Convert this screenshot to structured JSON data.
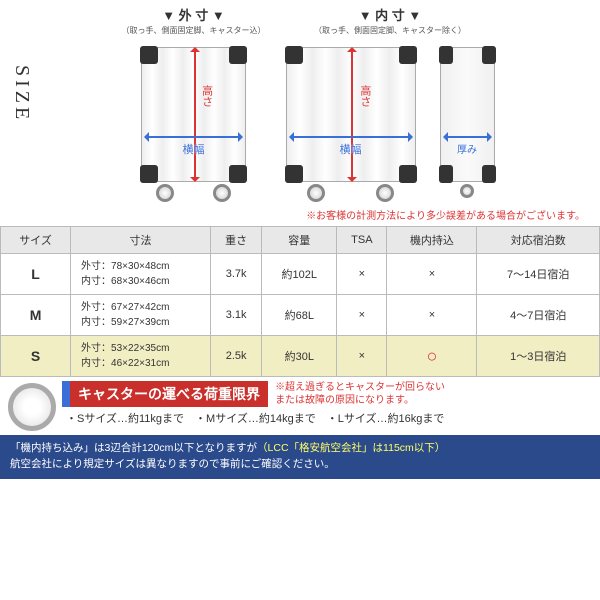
{
  "sizeLabel": "SIZE",
  "diag": {
    "outer": {
      "title": "▼ 外 寸 ▼",
      "sub": "（取っ手、側面固定脚、キャスター込）"
    },
    "inner": {
      "title": "▼ 内 寸 ▼",
      "sub": "（取っ手、側面固定脚、キャスター除く）"
    },
    "height": "高さ",
    "width": "横幅",
    "depth": "厚み"
  },
  "note": "※お客様の計測方法により多少誤差がある場合がございます。",
  "headers": [
    "サイズ",
    "寸法",
    "重さ",
    "容量",
    "TSA",
    "機内持込",
    "対応宿泊数"
  ],
  "rows": [
    {
      "size": "L",
      "outer": "外寸：78×30×48cm",
      "inner": "内寸：68×30×46cm",
      "weight": "3.7k",
      "cap": "約102L",
      "tsa": "×",
      "carry": "×",
      "nights": "7〜14日宿泊"
    },
    {
      "size": "M",
      "outer": "外寸：67×27×42cm",
      "inner": "内寸：59×27×39cm",
      "weight": "3.1k",
      "cap": "約68L",
      "tsa": "×",
      "carry": "×",
      "nights": "4〜7日宿泊"
    },
    {
      "size": "S",
      "outer": "外寸：53×22×35cm",
      "inner": "内寸：46×22×31cm",
      "weight": "2.5k",
      "cap": "約30L",
      "tsa": "×",
      "carry": "○",
      "nights": "1〜3日宿泊"
    }
  ],
  "caster": {
    "title": "キャスターの運べる荷重限界",
    "note": "※超え過ぎるとキャスターが回らない\nまたは故障の原因になります。",
    "limits": "・Sサイズ…約11kgまで　・Mサイズ…約14kgまで　・Lサイズ…約16kgまで"
  },
  "footer": {
    "l1a": "「機内持ち込み」は3辺合計120cm以下となりますが",
    "l1b": "（LCC「格安航空会社」は115cm以下）",
    "l2": "航空会社により規定サイズは異なりますので事前にご確認ください。"
  }
}
